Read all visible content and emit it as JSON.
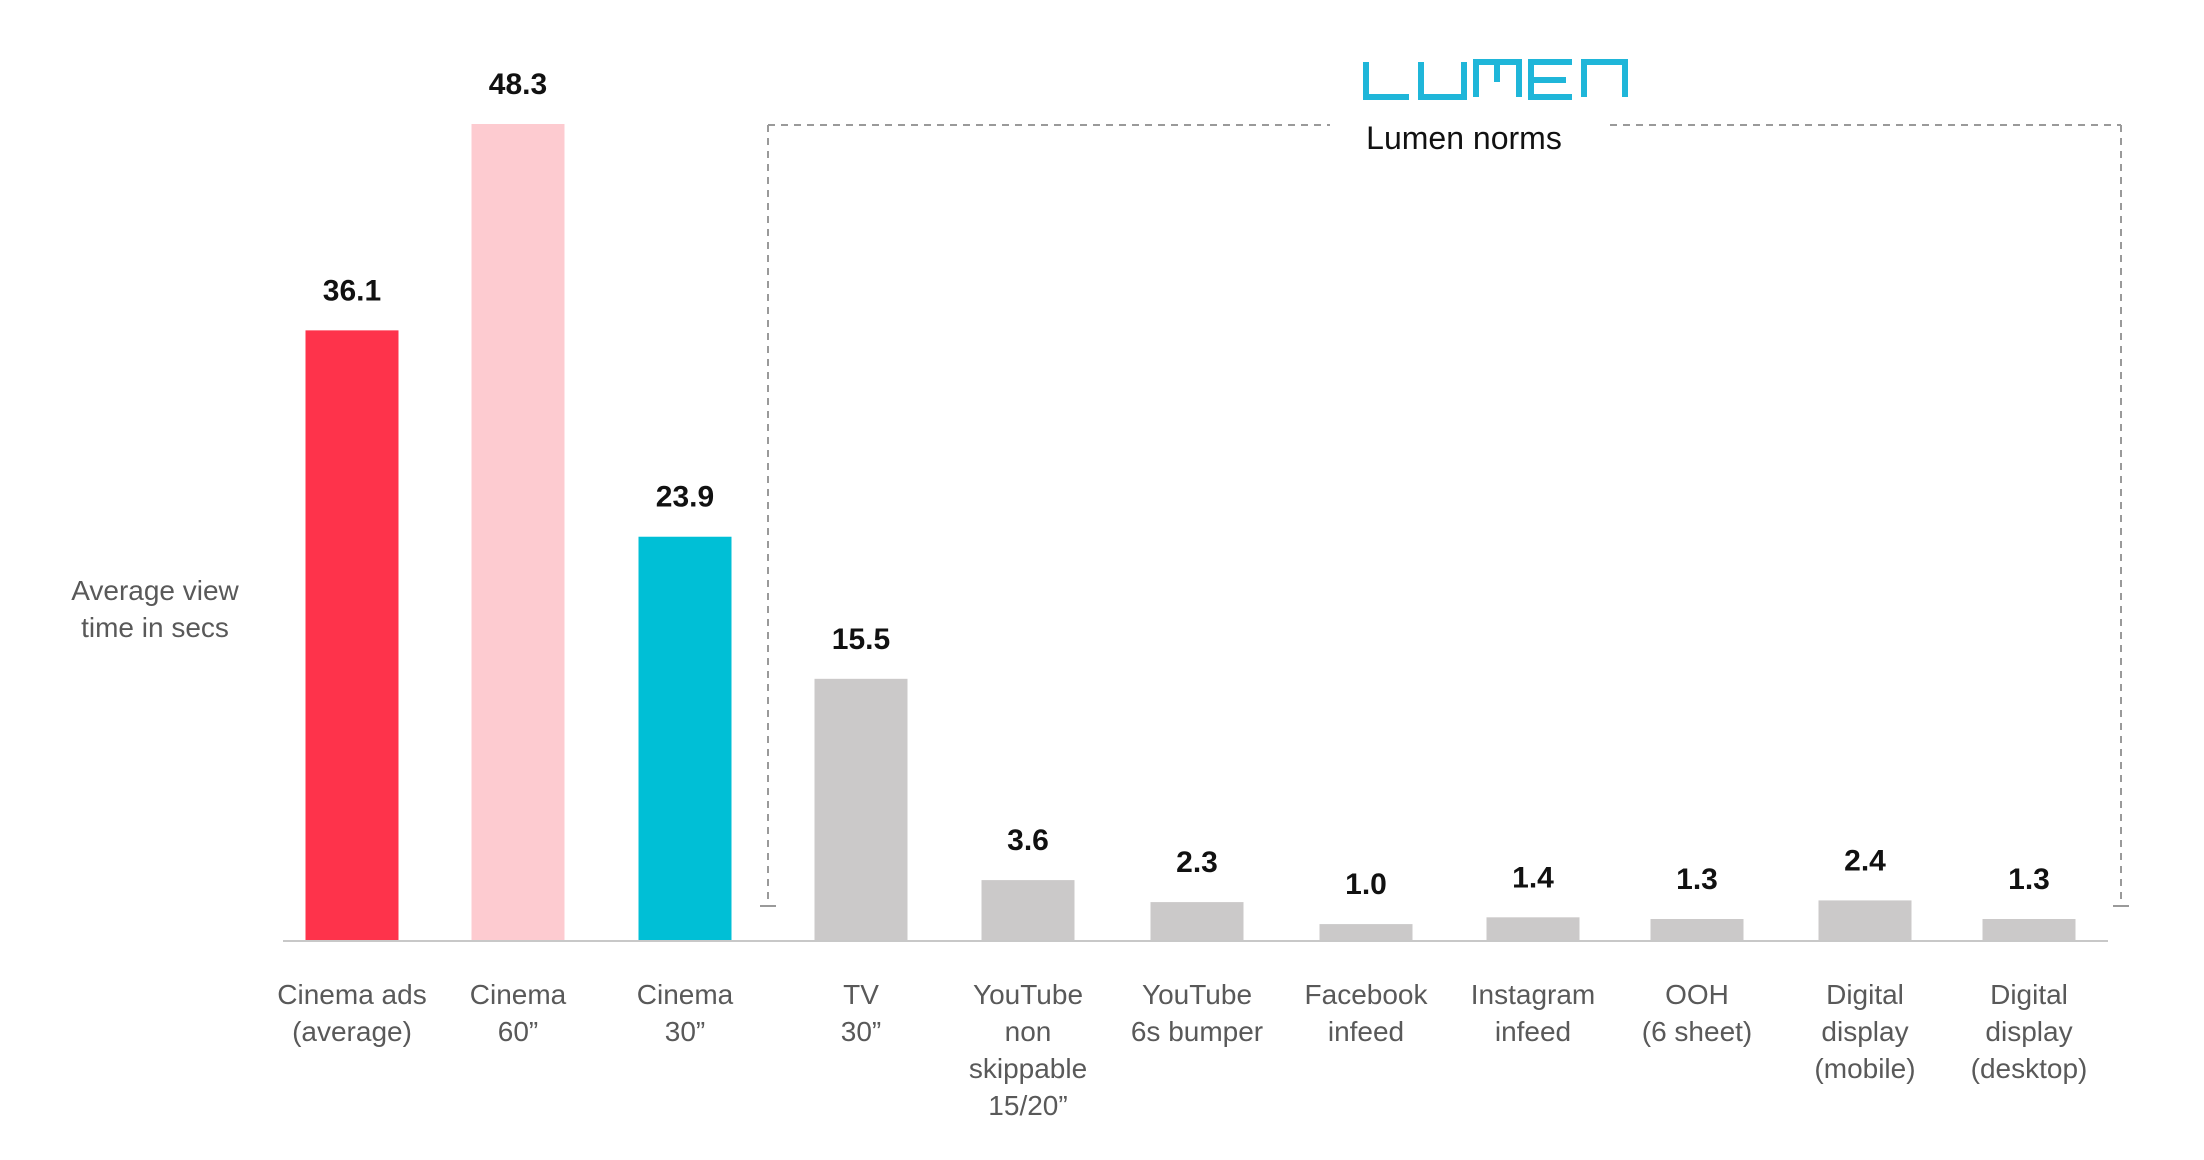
{
  "chart_data": {
    "type": "bar",
    "title": "",
    "ylabel": "Average view time in secs",
    "ylabel_lines": [
      "Average view",
      "time in secs"
    ],
    "ylim": [
      0,
      48.3
    ],
    "grid": false,
    "categories": [
      [
        "Cinema ads",
        "(average)"
      ],
      [
        "Cinema",
        "60”"
      ],
      [
        "Cinema",
        "30”"
      ],
      [
        "TV",
        "30”"
      ],
      [
        "YouTube",
        "non",
        "skippable",
        "15/20”"
      ],
      [
        "YouTube",
        "6s bumper"
      ],
      [
        "Facebook",
        "infeed"
      ],
      [
        "Instagram",
        "infeed"
      ],
      [
        "OOH",
        "(6 sheet)"
      ],
      [
        "Digital",
        "display",
        "(mobile)"
      ],
      [
        "Digital",
        "display",
        "(desktop)"
      ]
    ],
    "values": [
      36.1,
      48.3,
      23.9,
      15.5,
      3.6,
      2.3,
      1.0,
      1.4,
      1.3,
      2.4,
      1.3
    ],
    "value_labels": [
      "36.1",
      "48.3",
      "23.9",
      "15.5",
      "3.6",
      "2.3",
      "1.0",
      "1.4",
      "1.3",
      "2.4",
      "1.3"
    ],
    "colors": [
      "#fe334b",
      "#fdcbd0",
      "#00bfd6",
      "#cbc9c9",
      "#cbc9c9",
      "#cbc9c9",
      "#cbc9c9",
      "#cbc9c9",
      "#cbc9c9",
      "#cbc9c9",
      "#cbc9c9"
    ],
    "annotation": {
      "logo_text": "LUMEN",
      "logo_color": "#1fb6d9",
      "label": "Lumen norms",
      "bracket_from_category": 3,
      "bracket_to_category": 10
    }
  }
}
